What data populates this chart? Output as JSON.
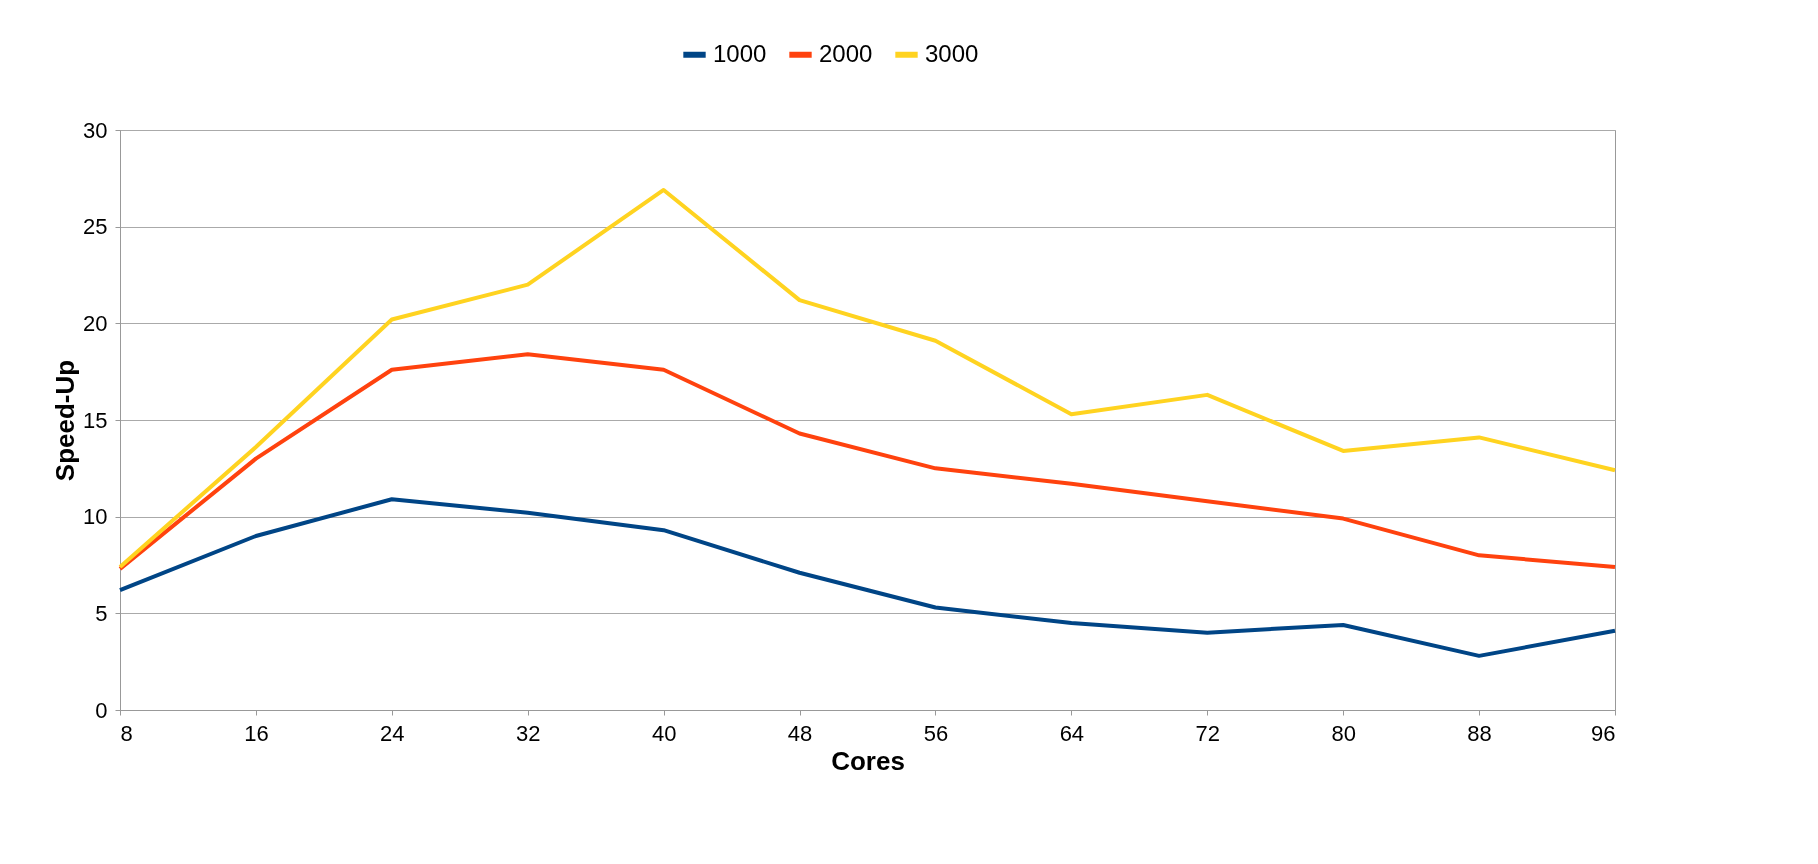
{
  "chart_data": {
    "type": "line",
    "xlabel": "Cores",
    "ylabel": "Speed-Up",
    "x": [
      8,
      16,
      24,
      32,
      40,
      48,
      56,
      64,
      72,
      80,
      88,
      96
    ],
    "series": [
      {
        "name": "1000",
        "color": "#004586",
        "values": [
          6.2,
          9.0,
          10.9,
          10.2,
          9.3,
          7.1,
          5.3,
          4.5,
          4.0,
          4.4,
          2.8,
          4.1
        ]
      },
      {
        "name": "2000",
        "color": "#ff420e",
        "values": [
          7.3,
          13.0,
          17.6,
          18.4,
          17.6,
          14.3,
          12.5,
          11.7,
          10.8,
          9.9,
          8.0,
          7.4
        ]
      },
      {
        "name": "3000",
        "color": "#ffd320",
        "values": [
          7.4,
          13.6,
          20.2,
          22.0,
          26.9,
          21.2,
          19.1,
          15.3,
          16.3,
          13.4,
          14.1,
          12.4
        ]
      }
    ],
    "xlim": [
      8,
      96
    ],
    "xticks": [
      8,
      16,
      24,
      32,
      40,
      48,
      56,
      64,
      72,
      80,
      88,
      96
    ],
    "ylim": [
      0,
      30
    ],
    "yticks": [
      0,
      5,
      10,
      15,
      20,
      25,
      30
    ],
    "grid": "y",
    "legend": "top",
    "marker": "none",
    "line_style": "solid"
  }
}
